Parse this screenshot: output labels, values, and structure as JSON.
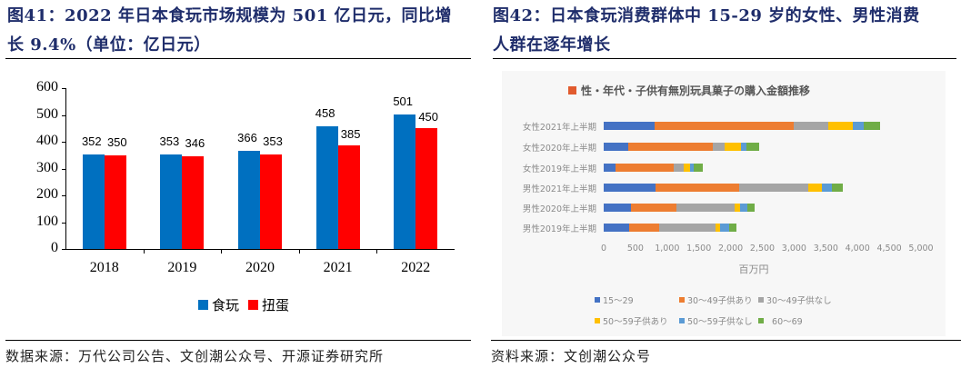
{
  "left": {
    "title_line1": "图41：2022 年日本食玩市场规模为 501 亿日元，同比增",
    "title_line2": "长 9.4%（单位：亿日元）",
    "source": "数据来源：万代公司公告、文创潮公众号、开源证券研究所",
    "legend": [
      {
        "label": "食玩",
        "color": "#0070C0"
      },
      {
        "label": "扭蛋",
        "color": "#FF0000"
      }
    ]
  },
  "right": {
    "title_line1": "图42：日本食玩消费群体中 15-29 岁的女性、男性消费",
    "title_line2": "人群在逐年增长",
    "source": "资料来源：文创潮公众号",
    "inner_title": "性・年代・子供有無別玩具菓子の購入金額推移",
    "inner_title_swatch": "#E15B2E",
    "x_unit": "百万円",
    "legend": [
      {
        "label": "15〜29",
        "color": "#4472C4"
      },
      {
        "label": "30〜49子供あり",
        "color": "#ED7D31"
      },
      {
        "label": "30〜49子供なし",
        "color": "#A5A5A5"
      },
      {
        "label": "50〜59子供あり",
        "color": "#FFC000"
      },
      {
        "label": "50〜59子供なし",
        "color": "#5B9BD5"
      },
      {
        "label": "60〜69",
        "color": "#70AD47"
      }
    ]
  },
  "chart_data": [
    {
      "type": "bar",
      "title": "2022 年日本食玩市场规模为 501 亿日元，同比增长 9.4%（单位：亿日元）",
      "categories": [
        "2018",
        "2019",
        "2020",
        "2021",
        "2022"
      ],
      "series": [
        {
          "name": "食玩",
          "color": "#0070C0",
          "values": [
            352,
            353,
            366,
            458,
            501
          ]
        },
        {
          "name": "扭蛋",
          "color": "#FF0000",
          "values": [
            350,
            346,
            353,
            385,
            450
          ]
        }
      ],
      "xlabel": "",
      "ylabel": "",
      "ylim": [
        0,
        600
      ],
      "yticks": [
        "0",
        "100",
        "200",
        "300",
        "400",
        "500",
        "600"
      ],
      "grid": false,
      "legend_position": "bottom",
      "data_labels": true
    },
    {
      "type": "bar",
      "orientation": "horizontal",
      "stacked": true,
      "title": "性・年代・子供有無別玩具菓子の購入金額推移",
      "categories": [
        "女性2021年上半期",
        "女性2020年上半期",
        "女性2019年上半期",
        "男性2021年上半期",
        "男性2020年上半期",
        "男性2019年上半期"
      ],
      "series": [
        {
          "name": "15〜29",
          "color": "#4472C4",
          "values": [
            800,
            380,
            190,
            810,
            425,
            400
          ]
        },
        {
          "name": "30〜49子供あり",
          "color": "#ED7D31",
          "values": [
            2200,
            1340,
            910,
            1330,
            715,
            480
          ]
        },
        {
          "name": "30〜49子供なし",
          "color": "#A5A5A5",
          "values": [
            540,
            190,
            160,
            1090,
            920,
            880
          ]
        },
        {
          "name": "50〜59子供あり",
          "color": "#FFC000",
          "values": [
            380,
            260,
            105,
            215,
            95,
            80
          ]
        },
        {
          "name": "50〜59子供なし",
          "color": "#5B9BD5",
          "values": [
            180,
            85,
            50,
            145,
            110,
            135
          ]
        },
        {
          "name": "60〜69",
          "color": "#70AD47",
          "values": [
            260,
            190,
            150,
            175,
            120,
            120
          ]
        }
      ],
      "xlabel": "百万円",
      "xlim": [
        0,
        5000
      ],
      "xticks": [
        "0",
        "500",
        "1,000",
        "1,500",
        "2,000",
        "2,500",
        "3,000",
        "3,500",
        "4,000",
        "4,500",
        "5,000"
      ],
      "grid": false,
      "legend_position": "bottom"
    }
  ]
}
